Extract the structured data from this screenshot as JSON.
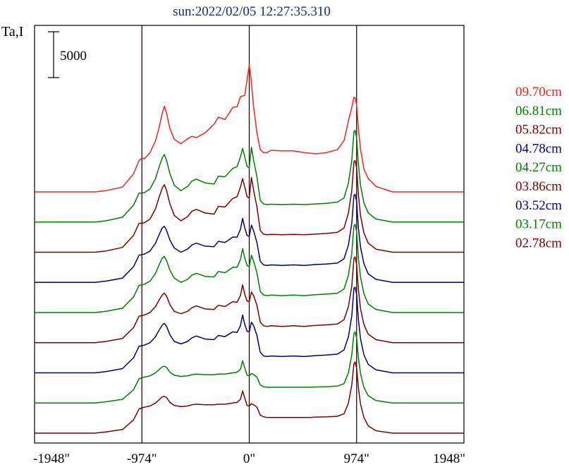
{
  "chart_data": {
    "type": "line",
    "title": "sun:2022/02/05 12:27:35.310",
    "ylabel": "Ta,I",
    "scale_bar": {
      "label": "5000",
      "value": 5000
    },
    "x_ticks": [
      "-1948\"",
      "-974\"",
      "0\"",
      "974\"",
      "1948\""
    ],
    "x_tick_values": [
      -1948,
      -974,
      0,
      974,
      1948
    ],
    "xlim": [
      -1948,
      1948
    ],
    "vlines": [
      -974,
      0,
      974
    ],
    "grid": false,
    "legend_placement": "right",
    "series": [
      {
        "name": "09.70cm",
        "color": "#ff2020",
        "baseline": 22000,
        "profile": "top"
      },
      {
        "name": "06.81cm",
        "color": "#008000",
        "baseline": 17000,
        "profile": "mid1"
      },
      {
        "name": "05.82cm",
        "color": "#800000",
        "baseline": 12000,
        "profile": "mid1"
      },
      {
        "name": "04.78cm",
        "color": "#000080",
        "baseline": 7000,
        "profile": "mid2"
      },
      {
        "name": "04.27cm",
        "color": "#008000",
        "baseline": 2000,
        "profile": "mid2"
      },
      {
        "name": "03.86cm",
        "color": "#800000",
        "baseline": -3000,
        "profile": "mid3"
      },
      {
        "name": "03.52cm",
        "color": "#000080",
        "baseline": -8000,
        "profile": "mid3"
      },
      {
        "name": "03.17cm",
        "color": "#008000",
        "baseline": -13000,
        "profile": "low"
      },
      {
        "name": "02.78cm",
        "color": "#800000",
        "baseline": -18000,
        "profile": "low"
      }
    ],
    "profiles": {
      "top": {
        "x": [
          -1948,
          -1400,
          -1300,
          -1150,
          -1050,
          -1000,
          -974,
          -950,
          -900,
          -850,
          -820,
          -790,
          -770,
          -750,
          -720,
          -680,
          -620,
          -560,
          -520,
          -480,
          -400,
          -320,
          -280,
          -220,
          -150,
          -110,
          -80,
          -40,
          -10,
          0,
          15,
          40,
          70,
          100,
          130,
          160,
          200,
          300,
          400,
          500,
          560,
          600,
          700,
          800,
          860,
          900,
          930,
          950,
          960,
          974,
          990,
          1010,
          1040,
          1080,
          1150,
          1300,
          1400,
          1948
        ],
        "y": [
          0,
          0,
          200,
          800,
          3000,
          5200,
          5600,
          5500,
          6500,
          8500,
          10500,
          13000,
          14200,
          13000,
          10500,
          8700,
          8000,
          8800,
          9200,
          9000,
          9800,
          11200,
          12400,
          12000,
          14000,
          14100,
          15800,
          16000,
          19800,
          21000,
          19000,
          14000,
          9800,
          7000,
          6500,
          6500,
          6900,
          6800,
          6800,
          6500,
          6400,
          6300,
          6500,
          7000,
          8500,
          11800,
          14000,
          15700,
          15600,
          14400,
          10500,
          7000,
          3800,
          2200,
          900,
          0,
          0,
          0
        ]
      },
      "mid1": {
        "x": [
          -1948,
          -1400,
          -1300,
          -1150,
          -1050,
          -1000,
          -974,
          -950,
          -900,
          -850,
          -820,
          -790,
          -770,
          -750,
          -720,
          -680,
          -620,
          -560,
          -520,
          -480,
          -400,
          -320,
          -280,
          -220,
          -150,
          -110,
          -80,
          -60,
          -40,
          -20,
          0,
          20,
          40,
          70,
          100,
          130,
          160,
          200,
          300,
          400,
          500,
          560,
          600,
          700,
          800,
          860,
          900,
          930,
          950,
          960,
          974,
          990,
          1010,
          1040,
          1080,
          1150,
          1300,
          1400,
          1948
        ],
        "y": [
          0,
          0,
          200,
          800,
          2800,
          4800,
          4800,
          4900,
          5500,
          7200,
          9000,
          10600,
          11200,
          10200,
          8000,
          6100,
          5200,
          5900,
          6800,
          7100,
          6500,
          6300,
          7600,
          7500,
          8900,
          9200,
          10800,
          12200,
          10800,
          9200,
          9000,
          12400,
          10200,
          7500,
          3600,
          3000,
          2900,
          2950,
          2900,
          2950,
          2900,
          2950,
          3000,
          3100,
          3300,
          4000,
          6500,
          10200,
          15000,
          15200,
          14000,
          9500,
          6000,
          3200,
          1500,
          500,
          0,
          0,
          0
        ]
      },
      "mid2": {
        "x": [
          -1948,
          -1400,
          -1300,
          -1150,
          -1050,
          -1000,
          -974,
          -950,
          -900,
          -850,
          -820,
          -790,
          -770,
          -750,
          -720,
          -680,
          -620,
          -560,
          -520,
          -480,
          -400,
          -320,
          -280,
          -220,
          -150,
          -110,
          -80,
          -60,
          -40,
          -20,
          0,
          20,
          40,
          70,
          100,
          130,
          160,
          200,
          300,
          400,
          500,
          560,
          600,
          700,
          800,
          860,
          900,
          930,
          950,
          960,
          974,
          990,
          1010,
          1040,
          1080,
          1150,
          1300,
          1400,
          1948
        ],
        "y": [
          0,
          0,
          200,
          700,
          2600,
          4500,
          4600,
          4700,
          5200,
          6500,
          7800,
          9000,
          9300,
          8600,
          7000,
          5700,
          5000,
          5500,
          6200,
          6500,
          6000,
          5900,
          6800,
          6600,
          7500,
          7500,
          8800,
          10600,
          9000,
          7800,
          7600,
          9500,
          8500,
          6600,
          3500,
          2900,
          2800,
          2900,
          2800,
          2900,
          2800,
          2900,
          2950,
          3050,
          3200,
          3900,
          6200,
          9800,
          14400,
          14600,
          13400,
          9000,
          5800,
          3100,
          1400,
          500,
          0,
          0,
          0
        ]
      },
      "mid3": {
        "x": [
          -1948,
          -1400,
          -1300,
          -1150,
          -1050,
          -1000,
          -974,
          -950,
          -900,
          -850,
          -820,
          -790,
          -770,
          -750,
          -720,
          -680,
          -620,
          -560,
          -520,
          -480,
          -400,
          -320,
          -280,
          -220,
          -150,
          -110,
          -80,
          -60,
          -40,
          -20,
          0,
          20,
          40,
          70,
          100,
          130,
          160,
          200,
          300,
          400,
          500,
          560,
          600,
          700,
          800,
          860,
          900,
          930,
          950,
          960,
          974,
          990,
          1010,
          1040,
          1080,
          1150,
          1300,
          1400,
          1948
        ],
        "y": [
          0,
          0,
          200,
          700,
          2500,
          4400,
          4500,
          4600,
          5000,
          6000,
          7000,
          7900,
          8200,
          7700,
          6300,
          5200,
          4800,
          5200,
          5800,
          6100,
          5600,
          5500,
          6200,
          6000,
          6800,
          6700,
          7800,
          9600,
          8000,
          6900,
          6800,
          8400,
          7800,
          6200,
          3400,
          2800,
          2700,
          2800,
          2700,
          2800,
          2700,
          2800,
          2850,
          2950,
          3100,
          3800,
          6000,
          9400,
          14000,
          14200,
          13000,
          8800,
          5600,
          3000,
          1400,
          500,
          0,
          0,
          0
        ]
      },
      "low": {
        "x": [
          -1948,
          -1400,
          -1300,
          -1150,
          -1050,
          -1000,
          -974,
          -950,
          -900,
          -850,
          -820,
          -790,
          -770,
          -750,
          -720,
          -680,
          -620,
          -560,
          -520,
          -480,
          -400,
          -320,
          -280,
          -220,
          -150,
          -110,
          -80,
          -60,
          -40,
          -20,
          0,
          20,
          40,
          70,
          100,
          130,
          160,
          200,
          300,
          400,
          500,
          560,
          600,
          700,
          800,
          860,
          900,
          930,
          950,
          960,
          974,
          990,
          1010,
          1040,
          1080,
          1150,
          1300,
          1400,
          1948
        ],
        "y": [
          0,
          0,
          200,
          600,
          2200,
          4000,
          4200,
          4300,
          4500,
          5000,
          5500,
          6000,
          6100,
          5900,
          5100,
          4600,
          4400,
          4500,
          4700,
          4800,
          4700,
          4700,
          4800,
          4800,
          5000,
          5100,
          5600,
          7000,
          5800,
          4600,
          4500,
          4900,
          4700,
          4300,
          3000,
          2700,
          2600,
          2600,
          2600,
          2600,
          2600,
          2600,
          2650,
          2700,
          2800,
          3200,
          5000,
          8000,
          11500,
          11800,
          10800,
          7500,
          4800,
          2600,
          1200,
          400,
          0,
          0,
          0
        ]
      }
    }
  }
}
